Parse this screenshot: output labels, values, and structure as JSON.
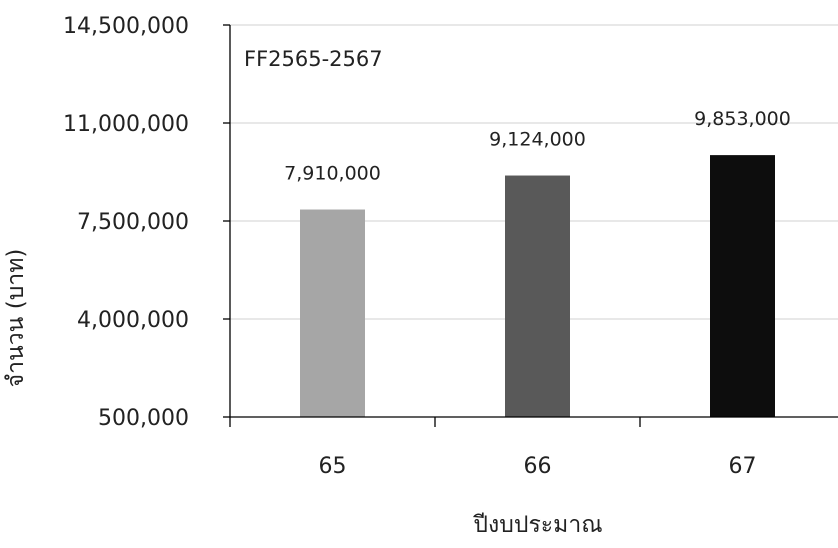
{
  "chart_data": {
    "type": "bar",
    "categories": [
      "65",
      "66",
      "67"
    ],
    "values": [
      7910000,
      9124000,
      9853000
    ],
    "value_labels": [
      "7,910,000",
      "9,124,000",
      "9,853,000"
    ],
    "bar_colors": [
      "#a6a6a6",
      "#595959",
      "#0d0d0d"
    ],
    "title": "",
    "annotation": "FF2565-2567",
    "xlabel": "ปีงบประมาณ",
    "ylabel": "จำนวน (บาท)",
    "ylim": [
      500000,
      14500000
    ],
    "yticks": [
      500000,
      4000000,
      7500000,
      11000000,
      14500000
    ],
    "ytick_labels": [
      "500,000",
      "4,000,000",
      "7,500,000",
      "11,000,000",
      "14,500,000"
    ],
    "grid": true,
    "gridline_color": "#d9d9d9",
    "axis_color": "#000000",
    "legend": "none"
  }
}
